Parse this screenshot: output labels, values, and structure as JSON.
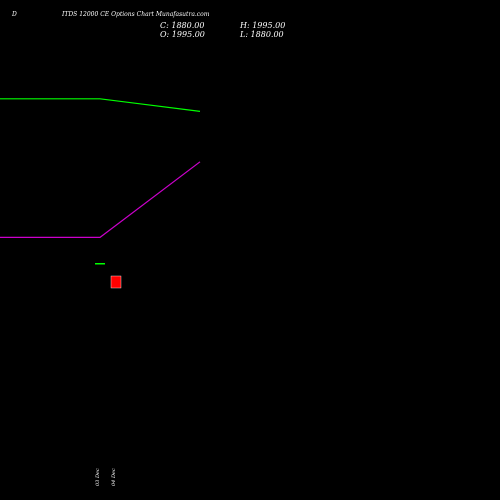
{
  "header": {
    "corner": "D",
    "title": "ITDS 12000 CE Options Chart Munafasutra.com",
    "close_label": "C: 1880.00",
    "high_label": "H: 1995.00",
    "open_label": "O: 1995.00",
    "low_label": "L: 1880.00"
  },
  "chart_data": {
    "type": "line",
    "x": [
      "03 Dec",
      "04 Dec"
    ],
    "series": [
      {
        "color": "#00ff00",
        "values": [
          0.86,
          0.83
        ]
      },
      {
        "color": "#cc00cc",
        "values": [
          0.53,
          0.71
        ]
      }
    ],
    "volume_bars": [
      {
        "x": "03 Dec",
        "color": "#00ff00",
        "value": 0.04
      },
      {
        "x": "04 Dec",
        "color": "#ff0000",
        "value": 1.0
      }
    ],
    "candles": [
      {
        "x": "04 Dec",
        "open": 1995.0,
        "high": 1995.0,
        "low": 1880.0,
        "close": 1880.0
      }
    ],
    "xlabel": "",
    "ylabel": "",
    "grid": false,
    "legend": "none"
  }
}
